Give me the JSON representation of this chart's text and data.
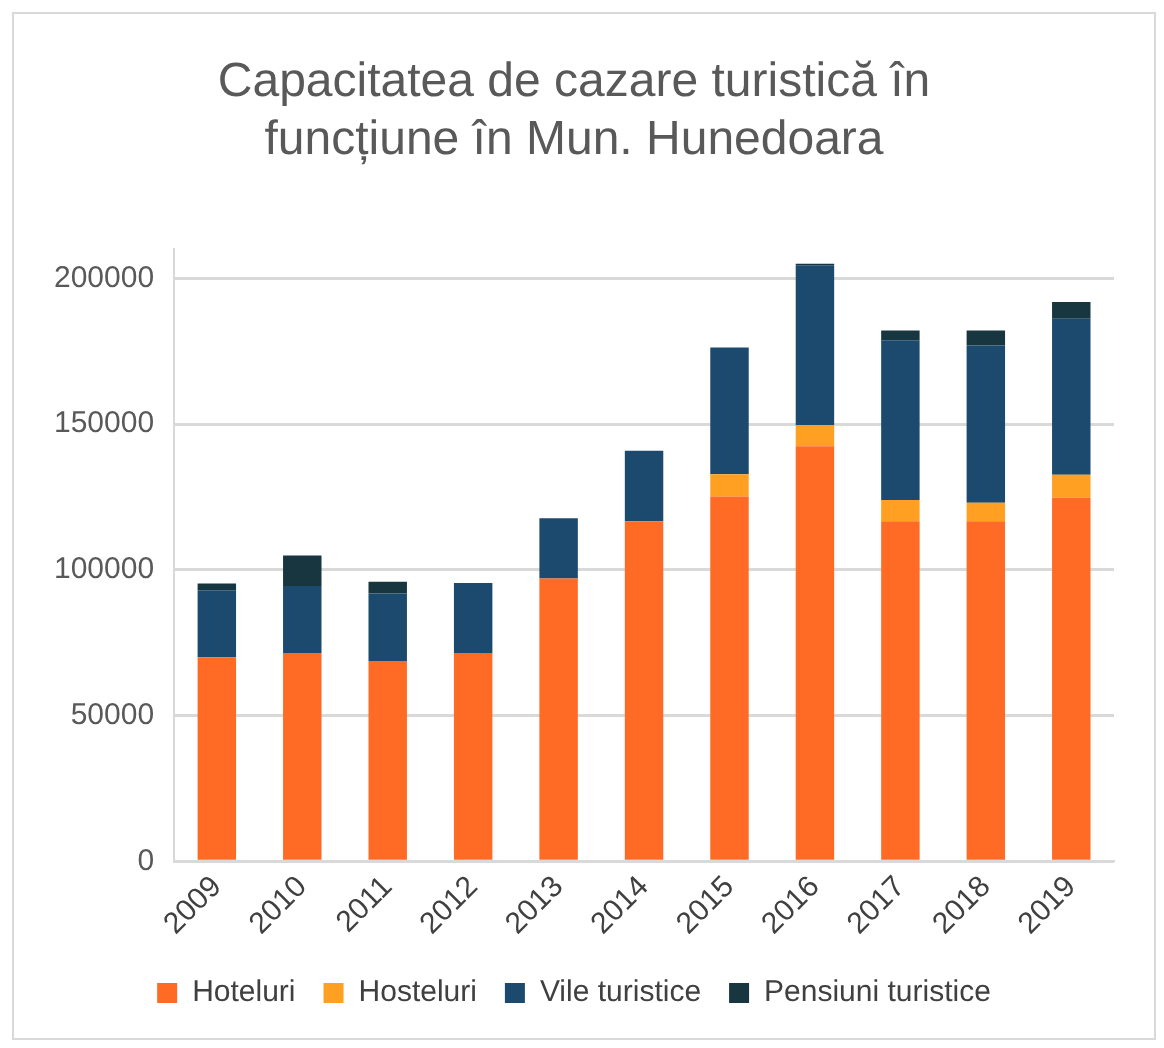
{
  "chart_data": {
    "type": "bar",
    "stacked": true,
    "title": "Capacitatea de cazare turistică în\nfuncțiune în Mun. Hunedoara",
    "categories": [
      "2009",
      "2010",
      "2011",
      "2012",
      "2013",
      "2014",
      "2015",
      "2016",
      "2017",
      "2018",
      "2019"
    ],
    "series": [
      {
        "name": "Hoteluri",
        "color": "#ff6b24",
        "values": [
          70000,
          71500,
          68700,
          71500,
          97000,
          116700,
          125200,
          142400,
          116700,
          116700,
          124700
        ]
      },
      {
        "name": "Hosteluri",
        "color": "#ffa023",
        "values": [
          null,
          null,
          null,
          null,
          null,
          null,
          7600,
          7300,
          7300,
          6300,
          7900
        ]
      },
      {
        "name": "Vile turistice",
        "color": "#1b4a6e",
        "values": [
          23000,
          23000,
          23200,
          24000,
          20700,
          24200,
          43500,
          54800,
          54800,
          54000,
          53500
        ]
      },
      {
        "name": "Pensiuni turistice",
        "color": "#17363f",
        "values": [
          2300,
          10400,
          4000,
          null,
          null,
          null,
          null,
          500,
          3300,
          5100,
          5800
        ]
      }
    ],
    "ylim": [
      0,
      210000
    ],
    "yticks": [
      0,
      50000,
      100000,
      150000,
      200000
    ],
    "grid": "y",
    "legend": "bottom"
  }
}
